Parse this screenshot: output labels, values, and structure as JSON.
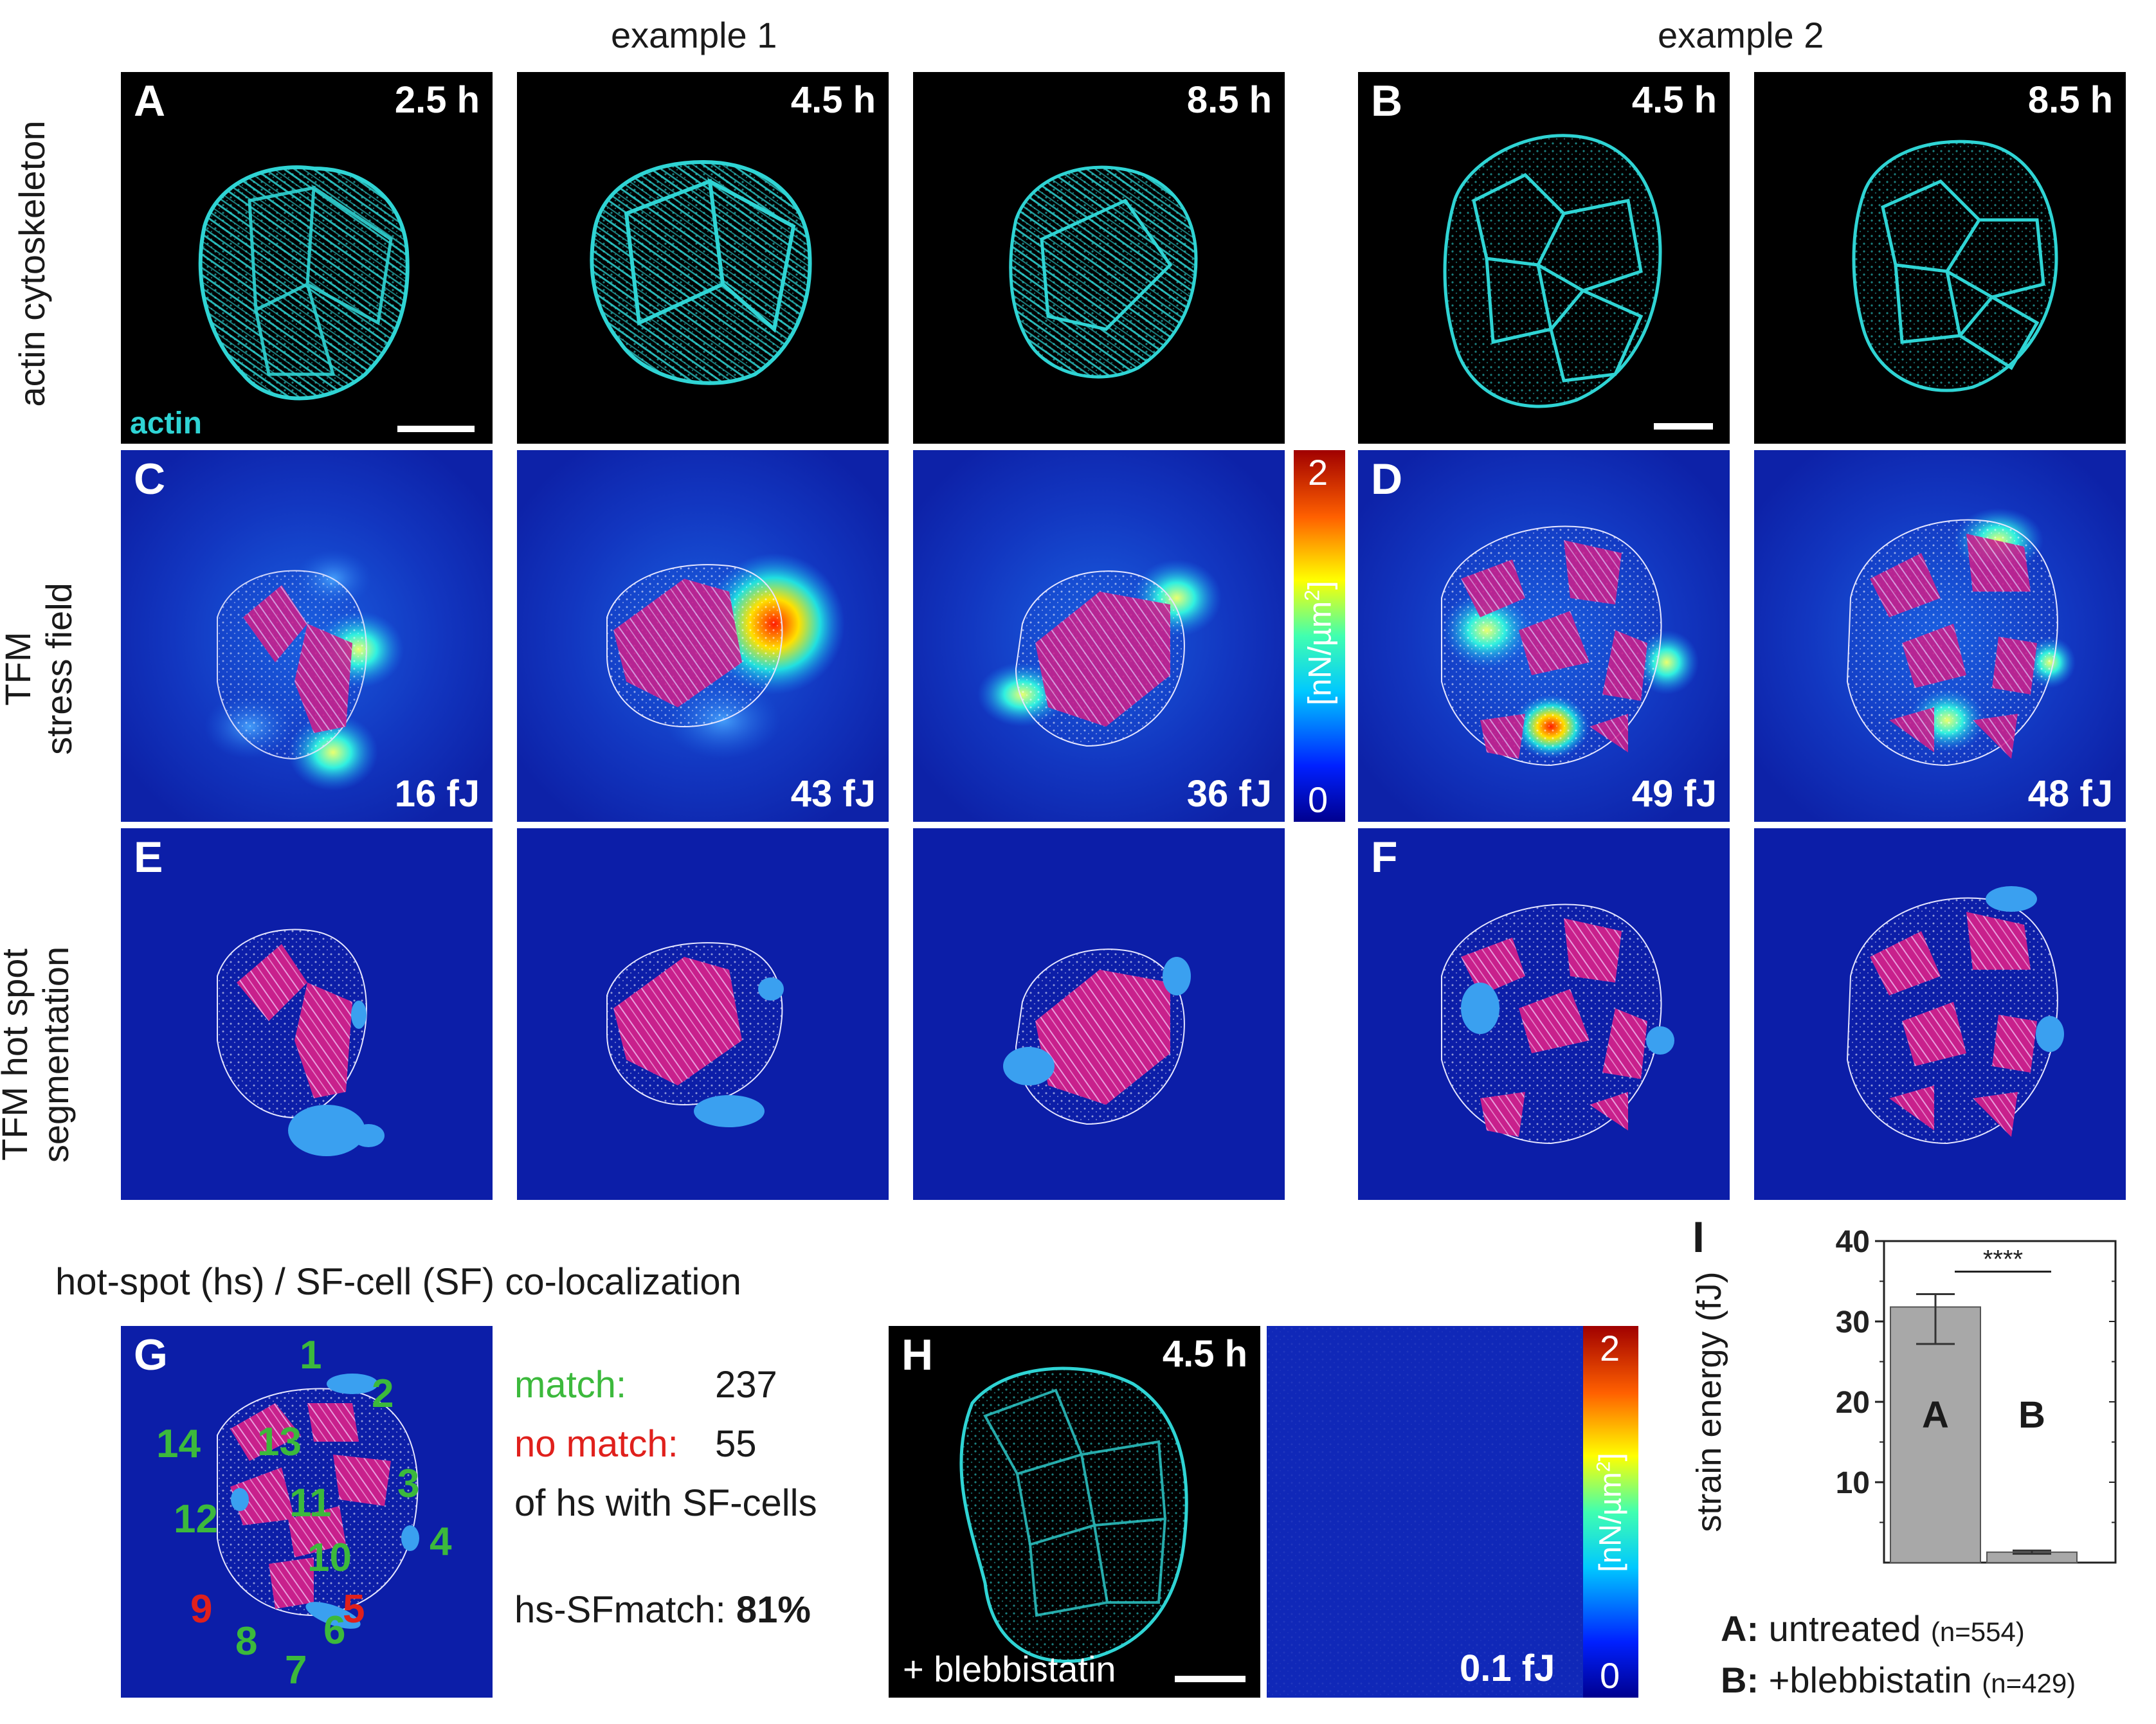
{
  "headers": {
    "example1": "example 1",
    "example2": "example 2"
  },
  "row_labels": {
    "row1": "actin cytoskeleton",
    "row2_line1": "TFM",
    "row2_line2": "stress field",
    "row3_line1": "TFM hot spot",
    "row3_line2": "segmentation"
  },
  "panels": {
    "A": "A",
    "B": "B",
    "C": "C",
    "D": "D",
    "E": "E",
    "F": "F",
    "G": "G",
    "H": "H",
    "I": "I"
  },
  "times": {
    "t1": "2.5 h",
    "t2": "4.5 h",
    "t3": "8.5 h",
    "t4": "4.5 h",
    "t5": "8.5 h",
    "h": "4.5 h"
  },
  "actin_label": "actin",
  "energies": {
    "c1": "16 fJ",
    "c2": "43 fJ",
    "c3": "36 fJ",
    "d1": "49 fJ",
    "d2": "48 fJ",
    "h": "0.1 fJ"
  },
  "colorbar": {
    "max": "2",
    "min": "0",
    "unit_prefix": "[nN/µm",
    "unit_sup": "2",
    "unit_suffix": "]"
  },
  "colocalization": {
    "title": "hot-spot (hs) / SF-cell (SF)  co-localization",
    "match_label": "match:",
    "match_value": "237",
    "nomatch_label": "no match:",
    "nomatch_value": "55",
    "of_text": "of hs with SF-cells",
    "hs_label": "hs-SFmatch: ",
    "hs_value": "81%",
    "numbers_green": [
      "1",
      "2",
      "3",
      "4",
      "6",
      "7",
      "8",
      "10",
      "11",
      "12",
      "13",
      "14"
    ],
    "numbers_red": [
      "5",
      "9"
    ]
  },
  "blebbistatin_label": "+ blebbistatin",
  "colors": {
    "cyan": "#2fd4d4",
    "match_green": "#3cb93c",
    "nomatch_red": "#e0201c",
    "bar_gray": "#a8a8a8",
    "tfm_bg": "#1030b8"
  },
  "chart_data": {
    "type": "bar",
    "categories": [
      "A",
      "B"
    ],
    "values": [
      31.8,
      1.3
    ],
    "errors": [
      [
        27.2,
        33.4
      ],
      [
        1.1,
        1.5
      ]
    ],
    "ylabel": "strain energy (fJ)",
    "ylim": [
      0,
      40
    ],
    "yticks": [
      "10",
      "20",
      "30",
      "40"
    ],
    "significance": "****",
    "legend": [
      {
        "key": "A:",
        "text": "untreated",
        "n": "(n=554)"
      },
      {
        "key": "B:",
        "text": "+blebbistatin",
        "n": "(n=429)"
      }
    ]
  }
}
